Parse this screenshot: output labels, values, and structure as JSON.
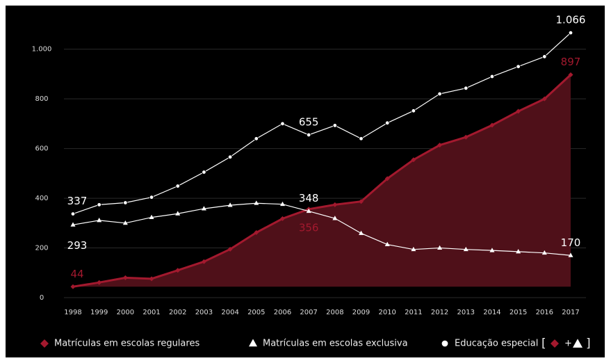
{
  "chart_data": {
    "type": "area-line",
    "x": [
      "1998",
      "1999",
      "2000",
      "2001",
      "2002",
      "2003",
      "2004",
      "2005",
      "2006",
      "2007",
      "2008",
      "2009",
      "2010",
      "2011",
      "2012",
      "2013",
      "2014",
      "2015",
      "2016",
      "2017"
    ],
    "series": [
      {
        "name": "Matrículas em escolas regulares",
        "color": "#a3192e",
        "marker": "diamond",
        "fill": true,
        "values": [
          44,
          61,
          80,
          76,
          110,
          145,
          195,
          262,
          318,
          356,
          374,
          387,
          479,
          555,
          614,
          646,
          694,
          750,
          800,
          897
        ],
        "value_labels": [
          "44",
          null,
          null,
          null,
          null,
          null,
          null,
          null,
          null,
          "356",
          null,
          null,
          null,
          null,
          null,
          null,
          null,
          null,
          null,
          "897"
        ]
      },
      {
        "name": "Matrículas em escolas exclusiva",
        "color": "#ffffff",
        "marker": "triangle",
        "fill": false,
        "values": [
          293,
          311,
          300,
          323,
          338,
          358,
          372,
          380,
          376,
          348,
          319,
          259,
          214,
          194,
          200,
          194,
          190,
          185,
          180,
          170
        ],
        "value_labels": [
          "293",
          null,
          null,
          null,
          null,
          null,
          null,
          null,
          null,
          "348",
          null,
          null,
          null,
          null,
          null,
          null,
          null,
          null,
          null,
          "170"
        ]
      },
      {
        "name": "Educação especial",
        "color": "#ffffff",
        "marker": "circle",
        "fill": false,
        "values": [
          337,
          374,
          382,
          404,
          449,
          505,
          566,
          640,
          700,
          655,
          693,
          640,
          703,
          752,
          820,
          843,
          890,
          930,
          970,
          1066
        ],
        "value_labels": [
          "337",
          null,
          null,
          null,
          null,
          null,
          null,
          null,
          null,
          "655",
          null,
          null,
          null,
          null,
          null,
          null,
          null,
          null,
          null,
          "1.066"
        ]
      }
    ],
    "legend_note": {
      "open": "[",
      "plus": "+",
      "close": "]"
    },
    "ylim": [
      0,
      1100
    ],
    "yticks": [
      0,
      200,
      400,
      600,
      800,
      {
        "value": 1000,
        "label": "1.000"
      }
    ],
    "grid": true
  }
}
